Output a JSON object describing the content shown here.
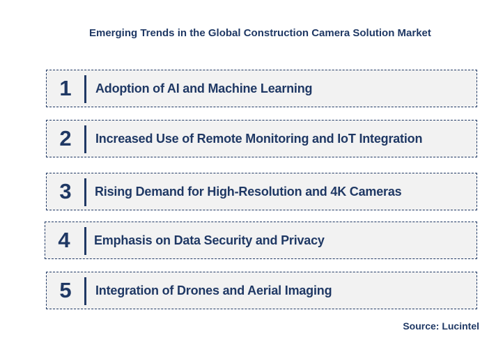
{
  "title": "Emerging Trends in the Global Construction Camera Solution Market",
  "trends": [
    {
      "number": "1",
      "label": "Adoption of AI and Machine Learning"
    },
    {
      "number": "2",
      "label": "Increased Use of Remote Monitoring and IoT Integration"
    },
    {
      "number": "3",
      "label": "Rising Demand for High-Resolution and 4K Cameras"
    },
    {
      "number": "4",
      "label": "Emphasis on Data Security and Privacy"
    },
    {
      "number": "5",
      "label": "Integration of Drones and Aerial Imaging"
    }
  ],
  "source": "Source: Lucintel",
  "colors": {
    "text": "#1f3864",
    "box_fill": "#f2f2f2",
    "box_border": "#1f3864"
  }
}
